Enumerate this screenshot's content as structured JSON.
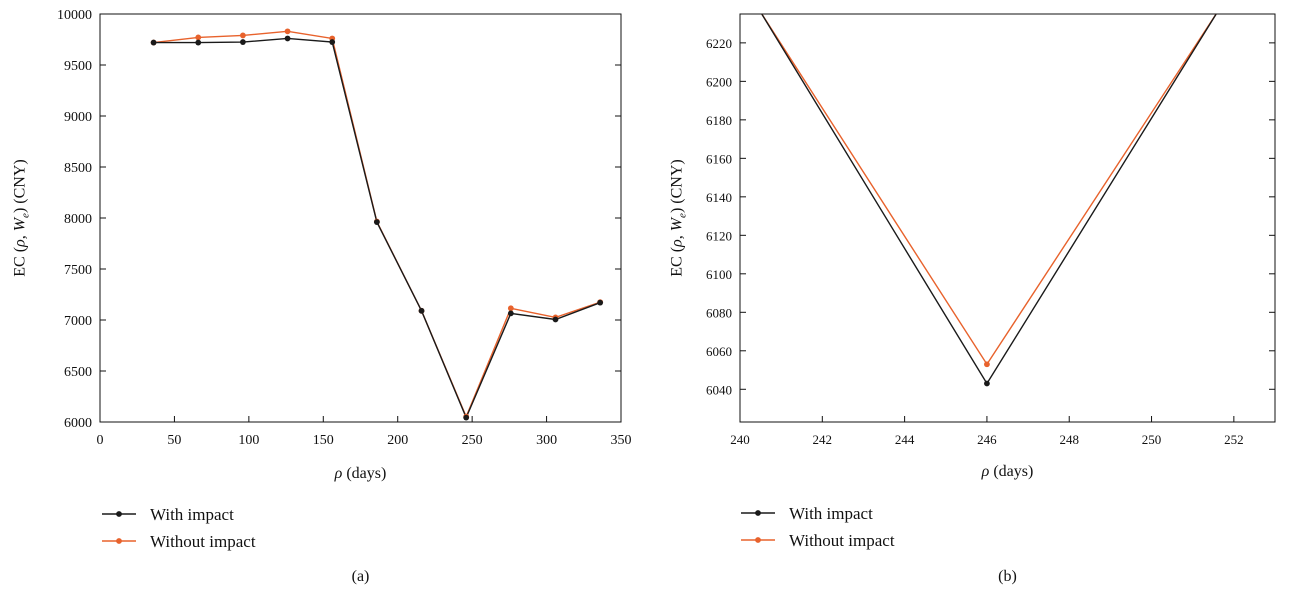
{
  "colors": {
    "with": "#1a1a1a",
    "without": "#e8622c",
    "axis": "#111111"
  },
  "chart_data": [
    {
      "type": "line",
      "panel_label": "(a)",
      "xlabel_var": "ρ",
      "xlabel_unit": " (days)",
      "ylabel": {
        "pre": "EC (",
        "rho": "ρ",
        "comma": ", W",
        "sub": "e",
        "post": ") (CNY)"
      },
      "xlim": [
        0,
        350
      ],
      "ylim": [
        6000,
        10000
      ],
      "xticks": [
        0,
        50,
        100,
        150,
        200,
        250,
        300,
        350
      ],
      "yticks": [
        6000,
        6500,
        7000,
        7500,
        8000,
        8500,
        9000,
        9500,
        10000
      ],
      "grid": false,
      "legend": "bottom-left",
      "x": [
        36,
        66,
        96,
        126,
        156,
        186,
        216,
        246,
        276,
        306,
        336
      ],
      "series": [
        {
          "name": "With impact",
          "values": [
            9720,
            9720,
            9725,
            9760,
            9725,
            7960,
            7090,
            6043,
            7065,
            7005,
            7170
          ]
        },
        {
          "name": "Without impact",
          "values": [
            9720,
            9770,
            9790,
            9830,
            9760,
            7965,
            7090,
            6053,
            7115,
            7025,
            7175
          ]
        }
      ]
    },
    {
      "type": "line",
      "panel_label": "(b)",
      "xlabel_var": "ρ",
      "xlabel_unit": " (days)",
      "ylabel": {
        "pre": "EC (",
        "rho": "ρ",
        "comma": ", W",
        "sub": "e",
        "post": ") (CNY)"
      },
      "xlim": [
        240,
        253
      ],
      "ylim": [
        6023,
        6235
      ],
      "xticks": [
        240,
        242,
        244,
        246,
        248,
        250,
        252
      ],
      "yticks": [
        6040,
        6060,
        6080,
        6100,
        6120,
        6140,
        6160,
        6180,
        6200,
        6220
      ],
      "grid": false,
      "legend": "bottom-left",
      "x": [
        240.5,
        246,
        251.6
      ],
      "series": [
        {
          "name": "With impact",
          "values": [
            6236,
            6043,
            6236
          ],
          "markers": [
            false,
            true,
            false
          ]
        },
        {
          "name": "Without impact",
          "values": [
            6236,
            6053,
            6236
          ],
          "markers": [
            false,
            true,
            false
          ]
        }
      ]
    }
  ]
}
